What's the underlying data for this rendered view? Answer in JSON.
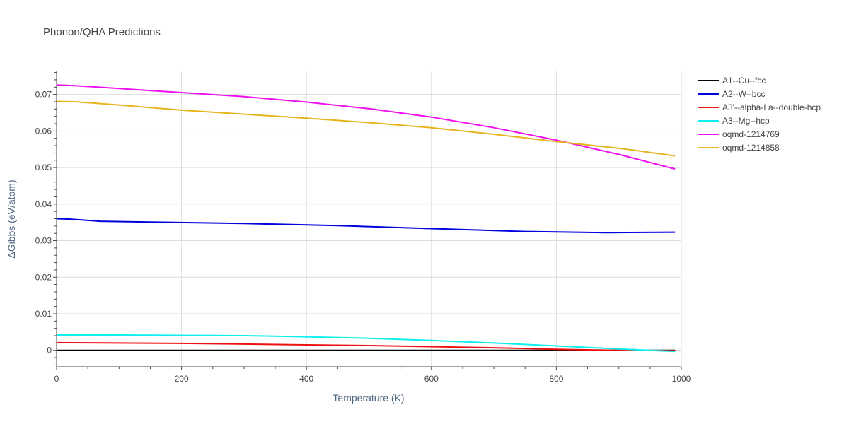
{
  "chart_data": {
    "type": "line",
    "title": "Phonon/QHA Predictions",
    "xlabel": "Temperature (K)",
    "ylabel": "ΔGibbs (eV/atom)",
    "xlim": [
      0,
      1000
    ],
    "ylim": [
      -0.0045,
      0.0765
    ],
    "xticks": [
      0,
      200,
      400,
      600,
      800,
      1000
    ],
    "xtick_labels": [
      "0",
      "200",
      "400",
      "600",
      "800",
      "1000"
    ],
    "yticks": [
      0,
      0.01,
      0.02,
      0.03,
      0.04,
      0.05,
      0.06,
      0.07
    ],
    "ytick_labels": [
      "0",
      "0.01",
      "0.02",
      "0.03",
      "0.04",
      "0.05",
      "0.06",
      "0.07"
    ],
    "grid": true,
    "legend_position": "right",
    "series": [
      {
        "name": "A1--Cu--fcc",
        "color": "#000000",
        "x": [
          0,
          200,
          400,
          600,
          800,
          990
        ],
        "y": [
          0,
          0,
          0,
          0,
          0,
          0
        ]
      },
      {
        "name": "A2--W--bcc",
        "color": "#0000dd",
        "x": [
          0,
          20,
          70,
          150,
          300,
          450,
          600,
          750,
          880,
          990
        ],
        "y": [
          0.036,
          0.0359,
          0.0353,
          0.0351,
          0.0347,
          0.0341,
          0.0333,
          0.0325,
          0.0322,
          0.0323
        ]
      },
      {
        "name": "A3'--alpha-La--double-hcp",
        "color": "#ee1111",
        "x": [
          0,
          100,
          200,
          300,
          400,
          500,
          600,
          700,
          800,
          900,
          990
        ],
        "y": [
          0.0021,
          0.002,
          0.0019,
          0.0017,
          0.0015,
          0.0013,
          0.001,
          0.0007,
          0.0003,
          0.0,
          -0.0001
        ]
      },
      {
        "name": "A3--Mg--hcp",
        "color": "#11eeee",
        "x": [
          0,
          100,
          200,
          300,
          400,
          500,
          600,
          700,
          800,
          900,
          990
        ],
        "y": [
          0.0042,
          0.0042,
          0.0041,
          0.004,
          0.0037,
          0.0033,
          0.0027,
          0.002,
          0.0012,
          0.0004,
          -0.0003
        ]
      },
      {
        "name": "oqmd-1214769",
        "color": "#ee11ee",
        "x": [
          0,
          30,
          100,
          200,
          300,
          400,
          500,
          600,
          700,
          800,
          900,
          990
        ],
        "y": [
          0.0726,
          0.0724,
          0.0716,
          0.0705,
          0.0694,
          0.0679,
          0.0661,
          0.0638,
          0.0609,
          0.0575,
          0.0536,
          0.0496
        ]
      },
      {
        "name": "oqmd-1214858",
        "color": "#e6b41c",
        "x": [
          0,
          30,
          100,
          200,
          300,
          400,
          500,
          600,
          700,
          800,
          900,
          990
        ],
        "y": [
          0.0681,
          0.068,
          0.0671,
          0.0657,
          0.0646,
          0.0635,
          0.0623,
          0.0609,
          0.0591,
          0.0571,
          0.0553,
          0.0532
        ]
      }
    ]
  }
}
